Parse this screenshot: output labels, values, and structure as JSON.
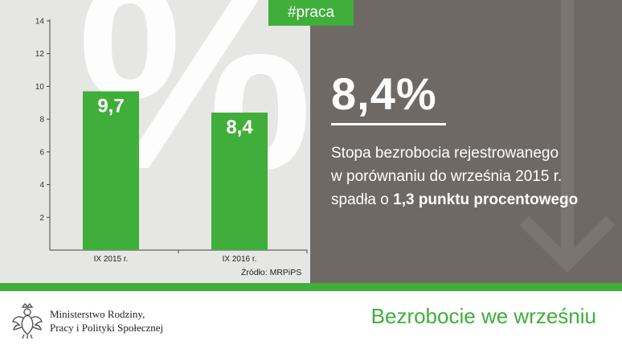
{
  "tag": "#praca",
  "headline": {
    "value": "8,4%",
    "line1": "Stopa bezrobocia rejestrowanego",
    "line2": "w porównaniu do września 2015 r.",
    "line3_prefix": "spadła o ",
    "line3_bold": "1,3 punktu procentowego"
  },
  "background_symbol": "%",
  "source": "Źródło: MRPiPS",
  "footer": {
    "ministry_line1": "Ministerstwo Rodziny,",
    "ministry_line2": "Pracy i Polityki Społecznej",
    "title": "Bezrobocie we wrześniu"
  },
  "colors": {
    "green": "#3fae3a",
    "dark_panel": "#6f6965",
    "light_panel": "#e6e6e4"
  },
  "chart_data": {
    "type": "bar",
    "categories": [
      "IX 2015 r.",
      "IX 2016 r."
    ],
    "values": [
      9.7,
      8.4
    ],
    "data_labels": [
      "9,7",
      "8,4"
    ],
    "ylim": [
      0,
      14
    ],
    "yticks": [
      2,
      4,
      6,
      8,
      10,
      12,
      14
    ],
    "xlabel": "",
    "ylabel": "",
    "grid": false
  }
}
